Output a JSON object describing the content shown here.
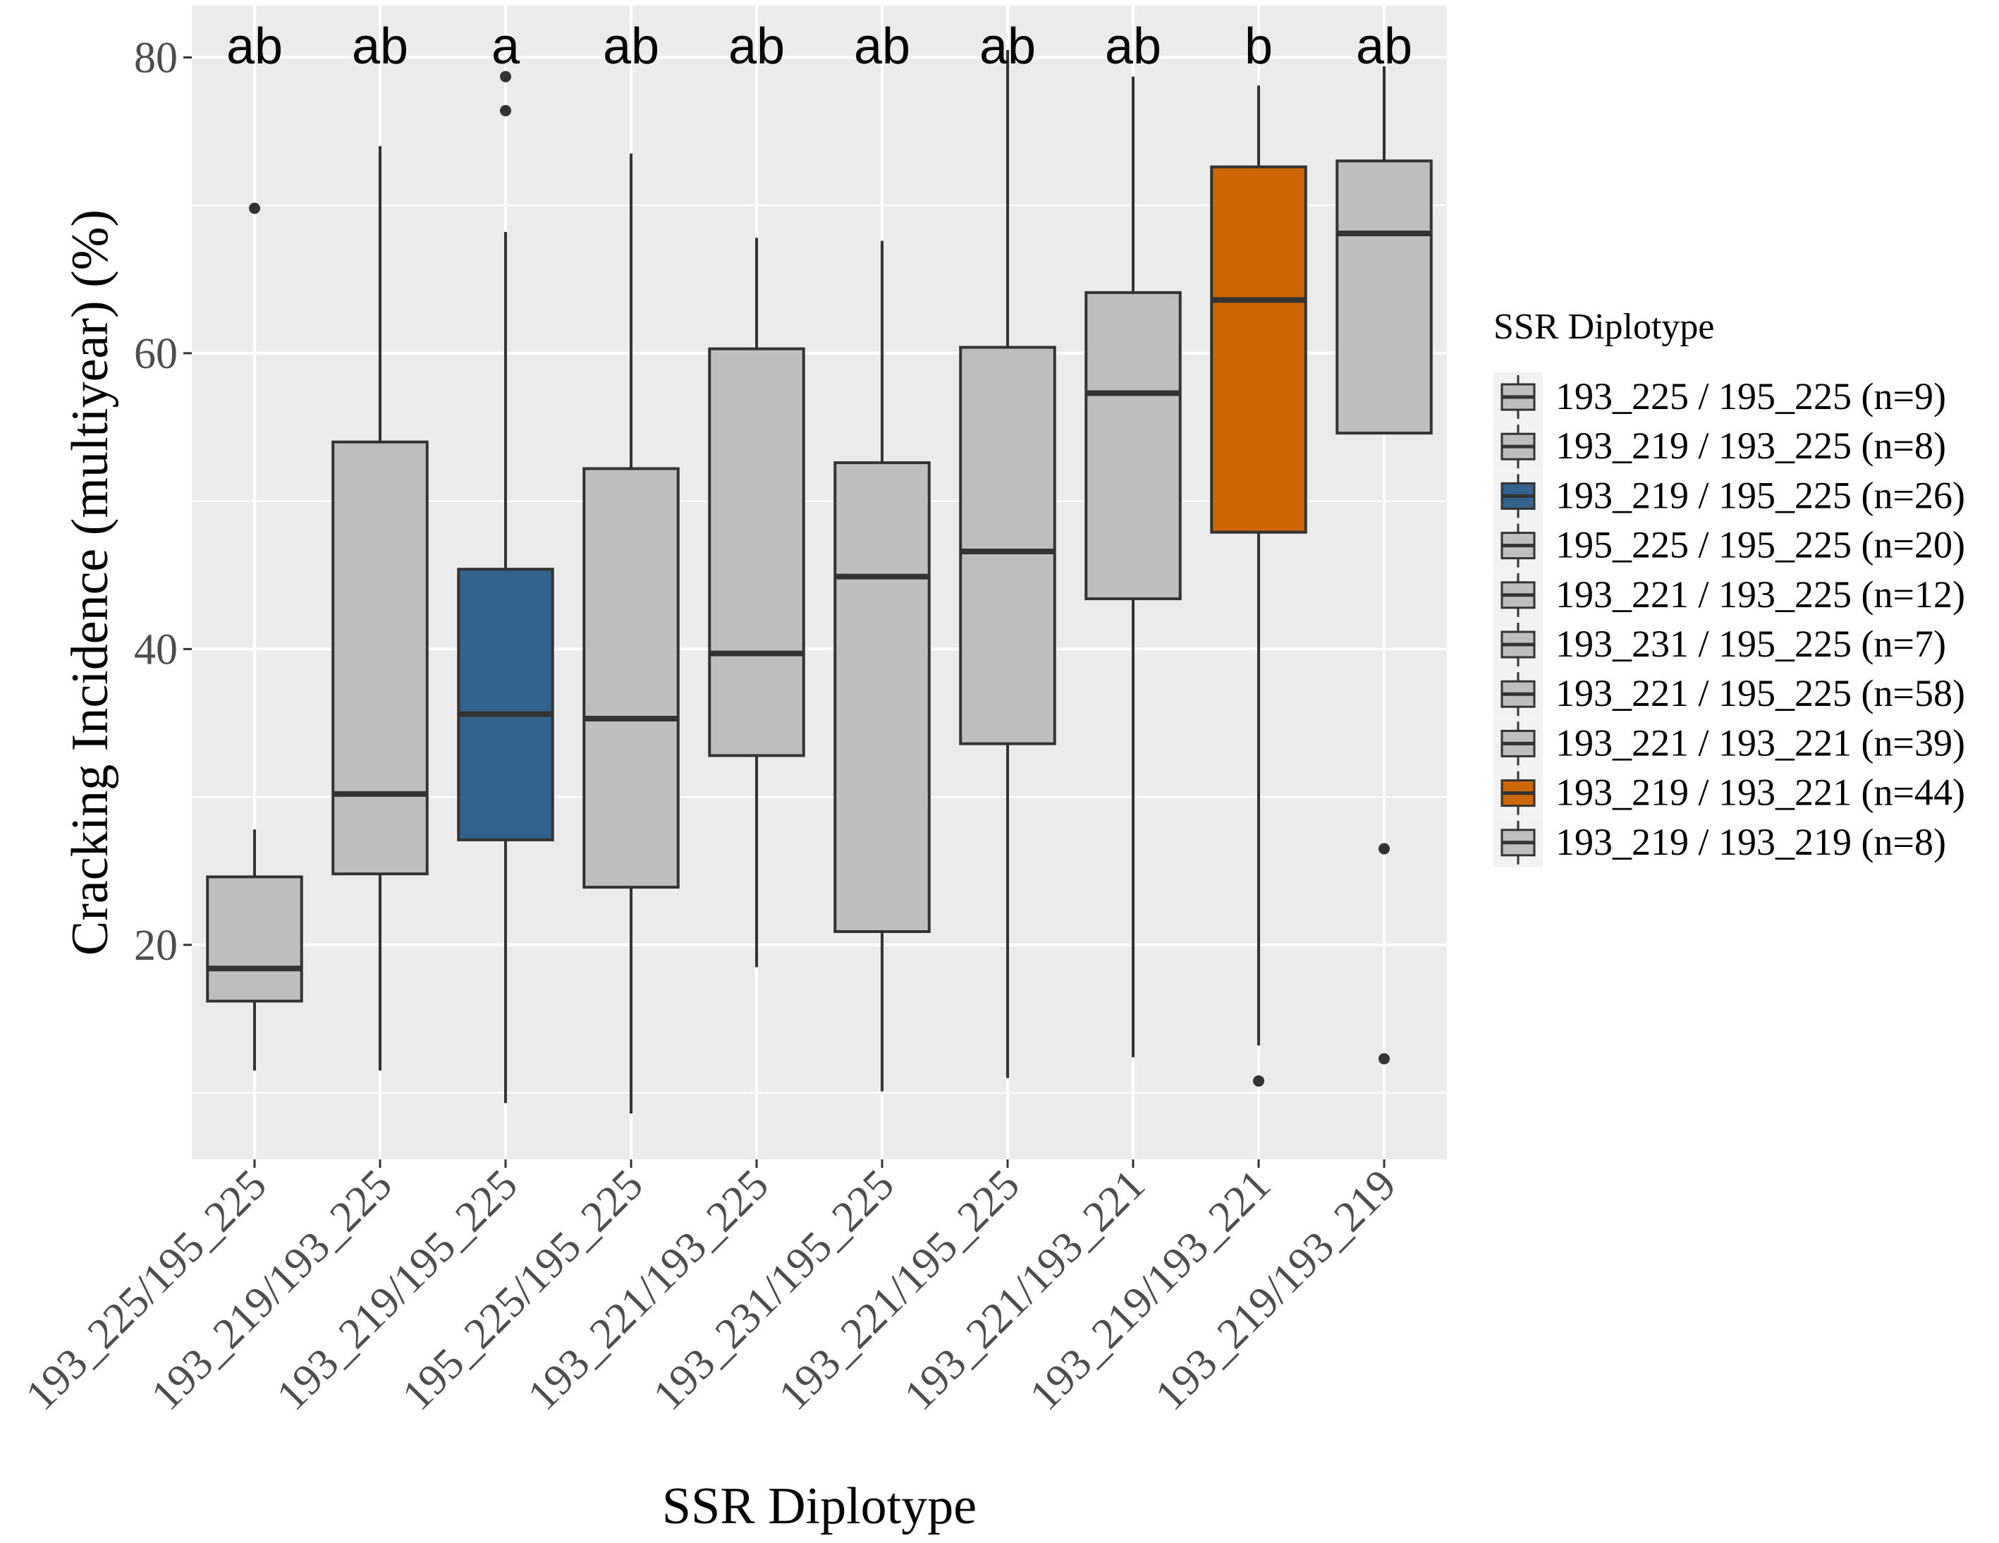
{
  "chart_data": {
    "type": "boxplot",
    "xlabel": "SSR Diplotype",
    "ylabel": "Cracking Incidence (multiyear) (%)",
    "ylim": [
      5.5,
      83.5
    ],
    "yticks": [
      20,
      40,
      60,
      80
    ],
    "grid": true,
    "legend_title": "SSR Diplotype",
    "legend_position": "right",
    "categories": [
      "193_225/195_225",
      "193_219/193_225",
      "193_219/195_225",
      "195_225/195_225",
      "193_221/193_225",
      "193_231/195_225",
      "193_221/195_225",
      "193_221/193_221",
      "193_219/193_221",
      "193_219/193_219"
    ],
    "legend_labels": [
      "193_225 / 195_225 (n=9)",
      "193_219 / 193_225 (n=8)",
      "193_219 / 195_225 (n=26)",
      "195_225 / 195_225 (n=20)",
      "193_221 / 193_225 (n=12)",
      "193_231 / 195_225 (n=7)",
      "193_221 / 195_225 (n=58)",
      "193_221 / 193_221 (n=39)",
      "193_219 / 193_221 (n=44)",
      "193_219 / 193_219 (n=8)"
    ],
    "letters": [
      "ab",
      "ab",
      "a",
      "ab",
      "ab",
      "ab",
      "ab",
      "ab",
      "b",
      "ab"
    ],
    "colors": [
      "#bebebe",
      "#bebebe",
      "#33628c",
      "#bebebe",
      "#bebebe",
      "#bebebe",
      "#bebebe",
      "#bebebe",
      "#cc6600",
      "#bebebe"
    ],
    "boxes": [
      {
        "lower_whisker": 11.5,
        "q1": 16.2,
        "median": 18.4,
        "q3": 24.6,
        "upper_whisker": 27.8,
        "outliers": [
          69.8
        ]
      },
      {
        "lower_whisker": 11.5,
        "q1": 24.8,
        "median": 30.2,
        "q3": 54.0,
        "upper_whisker": 74.0,
        "outliers": []
      },
      {
        "lower_whisker": 9.3,
        "q1": 27.1,
        "median": 35.6,
        "q3": 45.4,
        "upper_whisker": 68.2,
        "outliers": [
          76.4,
          78.7
        ]
      },
      {
        "lower_whisker": 8.6,
        "q1": 23.9,
        "median": 35.3,
        "q3": 52.2,
        "upper_whisker": 73.5,
        "outliers": []
      },
      {
        "lower_whisker": 18.5,
        "q1": 32.8,
        "median": 39.7,
        "q3": 60.3,
        "upper_whisker": 67.8,
        "outliers": []
      },
      {
        "lower_whisker": 10.1,
        "q1": 20.9,
        "median": 44.9,
        "q3": 52.6,
        "upper_whisker": 67.6,
        "outliers": []
      },
      {
        "lower_whisker": 11.0,
        "q1": 33.6,
        "median": 46.6,
        "q3": 60.4,
        "upper_whisker": 80.5,
        "outliers": []
      },
      {
        "lower_whisker": 12.4,
        "q1": 43.4,
        "median": 57.3,
        "q3": 64.1,
        "upper_whisker": 78.7,
        "outliers": []
      },
      {
        "lower_whisker": 13.2,
        "q1": 47.9,
        "median": 63.6,
        "q3": 72.6,
        "upper_whisker": 78.1,
        "outliers": [
          10.8
        ]
      },
      {
        "lower_whisker": 54.6,
        "q1": 54.6,
        "median": 68.1,
        "q3": 73.0,
        "upper_whisker": 79.4,
        "outliers": [
          12.3,
          26.5
        ]
      }
    ]
  }
}
